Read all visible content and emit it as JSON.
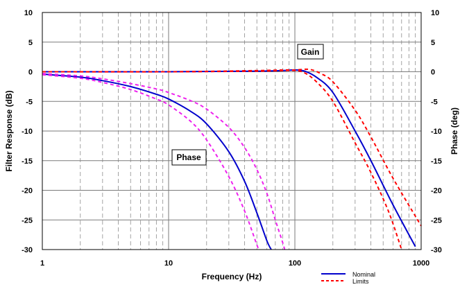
{
  "chart_data": {
    "type": "line",
    "xlabel": "Frequency (Hz)",
    "ylabel": "Filter Response (dB)",
    "y2label": "Phase (deg)",
    "xscale": "log",
    "xlim": [
      1,
      1000
    ],
    "ylim": [
      -30,
      10
    ],
    "y2lim": [
      -30,
      10
    ],
    "grid": true,
    "x_ticks": [
      "1",
      "10",
      "100",
      "1000"
    ],
    "y_ticks": [
      "10",
      "5",
      "0",
      "-5",
      "-10",
      "-15",
      "-20",
      "-25",
      "-30"
    ],
    "y2_ticks": [
      "10",
      "5",
      "0",
      "-5",
      "-10",
      "-15",
      "-20",
      "-25",
      "-30"
    ],
    "annotations": [
      {
        "text": "Gain",
        "x": 130,
        "y": 3.5
      },
      {
        "text": "Phase",
        "x": 3.1,
        "y": -14.3
      }
    ],
    "legend": {
      "position": "bottom-right",
      "entries": [
        {
          "label": "Nominal",
          "color": "#0000cc",
          "style": "solid"
        },
        {
          "label": "Limits",
          "color": "#ff0000",
          "style": "dashed"
        }
      ]
    },
    "series": [
      {
        "group": "gain",
        "kind": "nominal",
        "color": "#0000cc",
        "dash": "solid",
        "x": [
          1,
          10,
          50,
          80,
          100,
          120,
          150,
          200,
          300,
          400,
          600,
          900
        ],
        "y": [
          0,
          0,
          0.1,
          0.2,
          0.3,
          0.1,
          -1,
          -3.5,
          -10,
          -15,
          -22.5,
          -29.5
        ]
      },
      {
        "group": "gain",
        "kind": "limit",
        "color": "#ff0000",
        "dash": "dashed",
        "x": [
          1,
          10,
          50,
          80,
          100,
          130,
          160,
          200,
          300,
          400,
          600,
          1000
        ],
        "y": [
          0,
          0,
          0.2,
          0.3,
          0.3,
          0.4,
          -0.3,
          -1.7,
          -6.5,
          -11,
          -18,
          -26
        ]
      },
      {
        "group": "gain",
        "kind": "limit",
        "color": "#ff0000",
        "dash": "dashed",
        "x": [
          1,
          10,
          50,
          80,
          100,
          120,
          150,
          200,
          300,
          400,
          550,
          700
        ],
        "y": [
          0,
          0,
          0.1,
          0.2,
          0.2,
          -0.2,
          -1.8,
          -5,
          -12,
          -17,
          -23.5,
          -30
        ]
      },
      {
        "group": "phase",
        "kind": "nominal",
        "color": "#0000cc",
        "dash": "solid",
        "x": [
          1,
          2,
          3,
          5,
          8,
          10,
          15,
          20,
          30,
          40,
          50,
          60,
          65
        ],
        "y": [
          -0.4,
          -0.9,
          -1.5,
          -2.5,
          -3.8,
          -4.6,
          -6.7,
          -8.8,
          -13.5,
          -18.5,
          -23.8,
          -28.5,
          -30
        ]
      },
      {
        "group": "phase",
        "kind": "limit",
        "color": "#ee22ee",
        "dash": "dashed",
        "x": [
          1,
          2,
          3,
          5,
          8,
          10,
          15,
          20,
          30,
          40,
          50,
          60,
          70,
          80,
          83
        ],
        "y": [
          -0.3,
          -0.7,
          -1.2,
          -2,
          -2.9,
          -3.5,
          -4.9,
          -6.3,
          -9.4,
          -12.8,
          -16.5,
          -20.5,
          -25,
          -28.8,
          -30
        ]
      },
      {
        "group": "phase",
        "kind": "limit",
        "color": "#ee22ee",
        "dash": "dashed",
        "x": [
          1,
          2,
          3,
          5,
          8,
          10,
          15,
          20,
          30,
          40,
          50,
          52
        ],
        "y": [
          -0.5,
          -1.1,
          -1.8,
          -3,
          -4.6,
          -5.6,
          -8.4,
          -11.5,
          -17.7,
          -23.5,
          -29.2,
          -30
        ]
      }
    ]
  }
}
